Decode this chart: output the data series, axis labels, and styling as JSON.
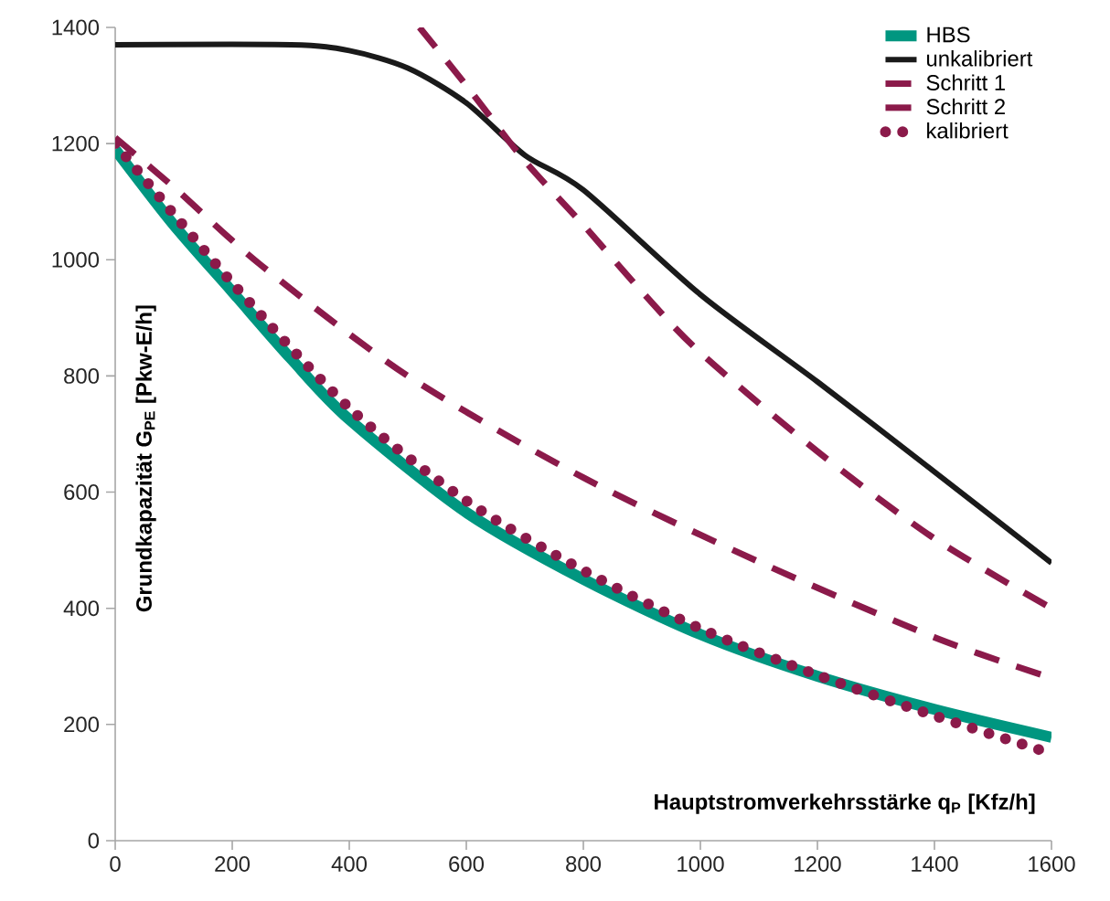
{
  "chart_data": {
    "type": "line",
    "xlabel": "Hauptstromverkehrsstärke q$_{P}$ [Kfz/h]",
    "ylabel": "Grundkapazität G$_{PE}$ [Pkw-E/h]",
    "xlim": [
      0,
      1600
    ],
    "ylim": [
      0,
      1400
    ],
    "xticks": [
      0,
      200,
      400,
      600,
      800,
      1000,
      1200,
      1400,
      1600
    ],
    "yticks": [
      0,
      200,
      400,
      600,
      800,
      1000,
      1200,
      1400
    ],
    "grid": false,
    "legend": "top right",
    "series": [
      {
        "name": "HBS",
        "color": "#009680",
        "line_style": "solid",
        "x": [
          0,
          100,
          200,
          300,
          400,
          600,
          800,
          1000,
          1200,
          1400,
          1600
        ],
        "values": [
          1190,
          1060,
          945,
          830,
          725,
          565,
          450,
          355,
          283,
          226,
          178
        ]
      },
      {
        "name": "unkalibriert",
        "color": "#1a1a1a",
        "line_style": "solid",
        "x": [
          0,
          300,
          400,
          500,
          600,
          700,
          800,
          1000,
          1200,
          1400,
          1600
        ],
        "values": [
          1370,
          1370,
          1360,
          1330,
          1270,
          1180,
          1120,
          940,
          790,
          635,
          478
        ]
      },
      {
        "name": "Schritt 1",
        "color": "#8b1a4a",
        "line_style": "dashed",
        "x": [
          520,
          600,
          700,
          800,
          900,
          1000,
          1200,
          1400,
          1600
        ],
        "values": [
          1400,
          1300,
          1170,
          1060,
          945,
          840,
          670,
          520,
          400
        ]
      },
      {
        "name": "Schritt 2",
        "color": "#8b1a4a",
        "line_style": "dashed",
        "x": [
          0,
          100,
          250,
          500,
          800,
          1100,
          1400,
          1600
        ],
        "values": [
          1210,
          1125,
          990,
          800,
          625,
          480,
          350,
          280
        ]
      },
      {
        "name": "kalibriert",
        "color": "#8b1a4a",
        "line_style": "dotted",
        "x": [
          0,
          200,
          400,
          600,
          800,
          1000,
          1200,
          1400,
          1600
        ],
        "values": [
          1200,
          960,
          745,
          585,
          465,
          365,
          285,
          215,
          150
        ]
      }
    ]
  }
}
